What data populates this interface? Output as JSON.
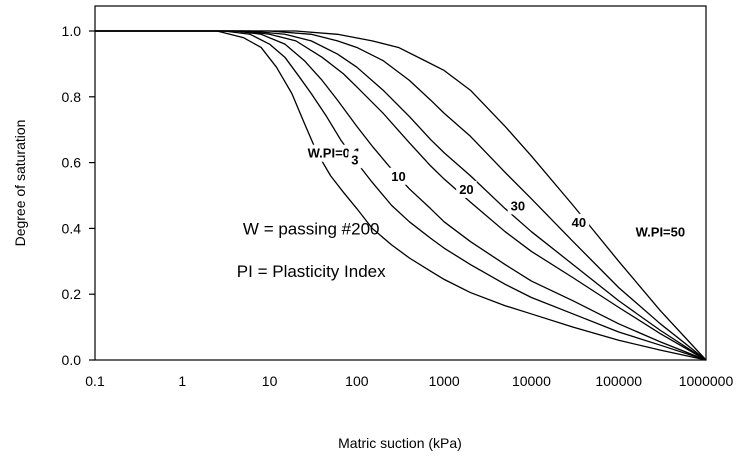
{
  "chart_data": {
    "type": "line",
    "x_scale": "log",
    "grid": false,
    "legend": "none",
    "xlabel": "Matric suction (kPa)",
    "ylabel": "Degree of saturation",
    "xlim": [
      0.1,
      1000000
    ],
    "ylim": [
      0.0,
      1.0
    ],
    "x_ticks": [
      0.1,
      1,
      10,
      100,
      1000,
      10000,
      100000,
      1000000
    ],
    "x_tick_labels": [
      "0.1",
      "1",
      "10",
      "100",
      "1000",
      "10000",
      "100000",
      "1000000"
    ],
    "y_ticks": [
      0.0,
      0.2,
      0.4,
      0.6,
      0.8,
      1.0
    ],
    "y_tick_labels": [
      "0.0",
      "0.2",
      "0.4",
      "0.6",
      "0.8",
      "1.0"
    ],
    "series": [
      {
        "label": "W.PI=0.1",
        "label_pos": [
          55,
          0.63
        ],
        "x": [
          0.1,
          1,
          2.5,
          5,
          8,
          12,
          18,
          25,
          35,
          50,
          70,
          100,
          150,
          250,
          400,
          700,
          1000,
          2000,
          5000,
          10000,
          30000,
          100000,
          300000,
          1000000
        ],
        "y": [
          1.0,
          1.0,
          1.0,
          0.98,
          0.95,
          0.89,
          0.81,
          0.72,
          0.63,
          0.56,
          0.51,
          0.46,
          0.4,
          0.35,
          0.31,
          0.27,
          0.245,
          0.205,
          0.165,
          0.14,
          0.1,
          0.06,
          0.03,
          0.0
        ]
      },
      {
        "label": "3",
        "label_pos": [
          95,
          0.61
        ],
        "x": [
          0.1,
          1,
          3,
          6,
          10,
          15,
          22,
          30,
          45,
          65,
          100,
          150,
          250,
          400,
          700,
          1000,
          2000,
          5000,
          10000,
          30000,
          100000,
          300000,
          1000000
        ],
        "y": [
          1.0,
          1.0,
          1.0,
          0.99,
          0.96,
          0.92,
          0.86,
          0.81,
          0.74,
          0.67,
          0.6,
          0.54,
          0.47,
          0.42,
          0.37,
          0.34,
          0.29,
          0.23,
          0.19,
          0.14,
          0.085,
          0.045,
          0.0
        ]
      },
      {
        "label": "10",
        "label_pos": [
          300,
          0.56
        ],
        "x": [
          0.1,
          1,
          4,
          8,
          15,
          25,
          40,
          60,
          100,
          150,
          250,
          400,
          700,
          1000,
          2000,
          5000,
          10000,
          30000,
          100000,
          300000,
          1000000
        ],
        "y": [
          1.0,
          1.0,
          1.0,
          0.99,
          0.96,
          0.91,
          0.85,
          0.79,
          0.71,
          0.65,
          0.58,
          0.52,
          0.46,
          0.42,
          0.36,
          0.29,
          0.24,
          0.18,
          0.11,
          0.055,
          0.0
        ]
      },
      {
        "label": "20",
        "label_pos": [
          1800,
          0.52
        ],
        "x": [
          0.1,
          1,
          5,
          10,
          20,
          40,
          70,
          100,
          200,
          400,
          700,
          1000,
          2000,
          5000,
          10000,
          30000,
          100000,
          300000,
          1000000
        ],
        "y": [
          1.0,
          1.0,
          1.0,
          0.99,
          0.97,
          0.92,
          0.87,
          0.83,
          0.75,
          0.66,
          0.59,
          0.55,
          0.48,
          0.39,
          0.33,
          0.25,
          0.16,
          0.08,
          0.0
        ]
      },
      {
        "label": "30",
        "label_pos": [
          7000,
          0.47
        ],
        "x": [
          0.1,
          1,
          6,
          15,
          30,
          60,
          100,
          200,
          400,
          700,
          1000,
          2000,
          5000,
          10000,
          30000,
          100000,
          300000,
          1000000
        ],
        "y": [
          1.0,
          1.0,
          1.0,
          0.99,
          0.97,
          0.93,
          0.89,
          0.82,
          0.74,
          0.67,
          0.63,
          0.56,
          0.46,
          0.39,
          0.29,
          0.18,
          0.09,
          0.0
        ]
      },
      {
        "label": "40",
        "label_pos": [
          35000,
          0.42
        ],
        "x": [
          0.1,
          1,
          10,
          30,
          60,
          100,
          200,
          400,
          700,
          1000,
          2000,
          5000,
          10000,
          30000,
          100000,
          300000,
          1000000
        ],
        "y": [
          1.0,
          1.0,
          1.0,
          0.99,
          0.97,
          0.95,
          0.91,
          0.85,
          0.79,
          0.75,
          0.68,
          0.57,
          0.49,
          0.36,
          0.22,
          0.11,
          0.0
        ]
      },
      {
        "label": "W.PI=50",
        "label_pos": [
          300000,
          0.39
        ],
        "x": [
          0.1,
          1,
          20,
          60,
          150,
          300,
          600,
          1000,
          2000,
          5000,
          10000,
          30000,
          100000,
          300000,
          1000000
        ],
        "y": [
          1.0,
          1.0,
          1.0,
          0.99,
          0.97,
          0.95,
          0.91,
          0.88,
          0.82,
          0.71,
          0.62,
          0.47,
          0.3,
          0.15,
          0.0
        ]
      }
    ],
    "annotations": [
      {
        "text": "W = passing #200",
        "pos": [
          30,
          0.4
        ]
      },
      {
        "text": "PI = Plasticity Index",
        "pos": [
          30,
          0.27
        ]
      }
    ]
  }
}
